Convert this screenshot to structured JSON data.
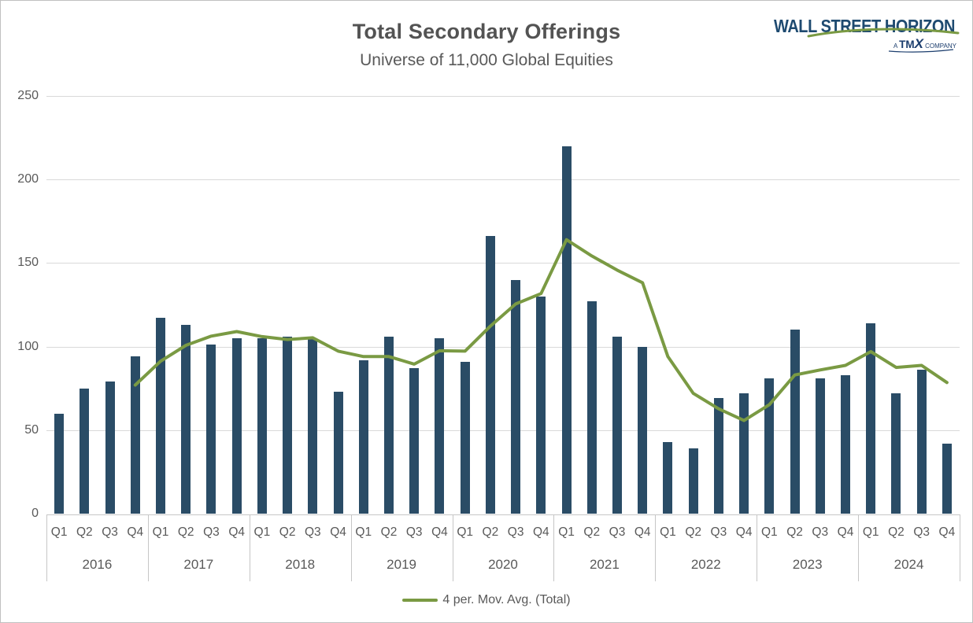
{
  "header": {
    "title": "Total Secondary Offerings",
    "subtitle": "Universe of 11,000 Global Equities"
  },
  "logo": {
    "brand": "WALL STREET HORIZON",
    "tagline_prefix": "A ",
    "tagline_brand": "TM",
    "tagline_x": "X",
    "tagline_suffix": " COMPANY",
    "brand_color": "#1e4a70",
    "swoosh_color": "#7a9a43"
  },
  "chart_data": {
    "type": "bar",
    "title": "Total Secondary Offerings",
    "subtitle": "Universe of 11,000 Global Equities",
    "years": [
      "2016",
      "2017",
      "2018",
      "2019",
      "2020",
      "2021",
      "2022",
      "2023",
      "2024"
    ],
    "quarters": [
      "Q1",
      "Q2",
      "Q3",
      "Q4"
    ],
    "categories": [
      "2016 Q1",
      "2016 Q2",
      "2016 Q3",
      "2016 Q4",
      "2017 Q1",
      "2017 Q2",
      "2017 Q3",
      "2017 Q4",
      "2018 Q1",
      "2018 Q2",
      "2018 Q3",
      "2018 Q4",
      "2019 Q1",
      "2019 Q2",
      "2019 Q3",
      "2019 Q4",
      "2020 Q1",
      "2020 Q2",
      "2020 Q3",
      "2020 Q4",
      "2021 Q1",
      "2021 Q2",
      "2021 Q3",
      "2021 Q4",
      "2022 Q1",
      "2022 Q2",
      "2022 Q3",
      "2022 Q4",
      "2023 Q1",
      "2023 Q2",
      "2023 Q3",
      "2023 Q4",
      "2024 Q1",
      "2024 Q2",
      "2024 Q3",
      "2024 Q4"
    ],
    "values": [
      60,
      75,
      79,
      94,
      117,
      113,
      101,
      105,
      105,
      106,
      105,
      73,
      92,
      106,
      87,
      105,
      91,
      166,
      140,
      130,
      220,
      127,
      106,
      100,
      43,
      39,
      69,
      72,
      81,
      110,
      81,
      83,
      114,
      72,
      86,
      42
    ],
    "moving_average": {
      "label": "4 per. Mov. Avg. (Total)",
      "period": 4,
      "values": [
        null,
        null,
        null,
        77,
        91.25,
        100.75,
        106.25,
        109,
        106,
        104.25,
        105.25,
        97.25,
        94,
        94,
        89.5,
        97.5,
        97.25,
        112.25,
        125.5,
        131.75,
        164,
        154.25,
        145.75,
        138.25,
        94,
        72,
        62.75,
        55.75,
        65.25,
        83,
        86,
        88.75,
        97,
        87.5,
        88.75,
        78.5
      ]
    },
    "ylim": [
      0,
      250
    ],
    "yticks": [
      0,
      50,
      100,
      150,
      200,
      250
    ],
    "grid": true,
    "legend_position": "bottom",
    "bar_color": "#2a4c66",
    "line_color": "#7a9a43",
    "axis_text_color": "#595959",
    "gridline_color": "#d9d9d9"
  }
}
